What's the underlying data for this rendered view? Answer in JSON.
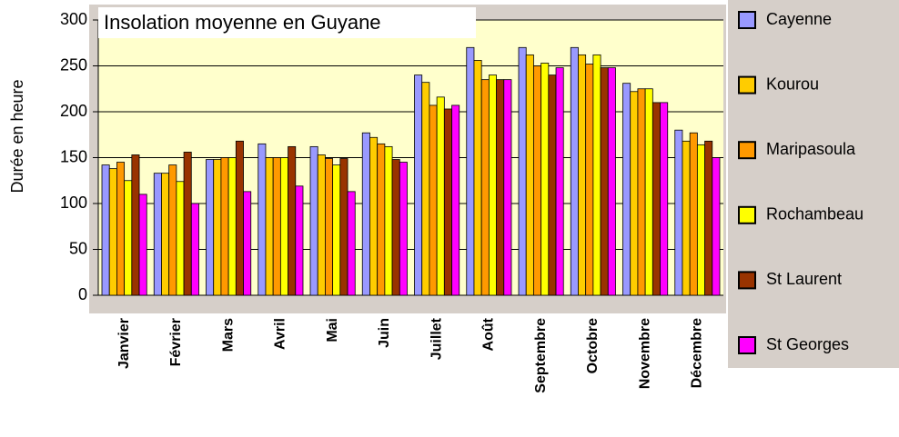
{
  "chart_data": {
    "type": "bar",
    "title": "Insolation moyenne en Guyane",
    "y_label": "Durée en heure",
    "categories": [
      "Janvier",
      "Février",
      "Mars",
      "Avril",
      "Mai",
      "Juin",
      "Juillet",
      "Août",
      "Septembre",
      "Octobre",
      "Novembre",
      "Décembre"
    ],
    "series": [
      {
        "name": "Cayenne",
        "color": "#9999ff",
        "values": [
          142,
          133,
          148,
          165,
          162,
          177,
          240,
          270,
          270,
          270,
          231,
          180
        ]
      },
      {
        "name": "Kourou",
        "color": "#ffcc00",
        "values": [
          138,
          133,
          148,
          150,
          153,
          172,
          232,
          256,
          262,
          262,
          222,
          168
        ]
      },
      {
        "name": "Maripasoula",
        "color": "#ff9900",
        "values": [
          145,
          142,
          150,
          150,
          149,
          165,
          207,
          235,
          250,
          252,
          225,
          177
        ]
      },
      {
        "name": "Rochambeau",
        "color": "#ffff00",
        "values": [
          125,
          124,
          150,
          150,
          142,
          162,
          216,
          240,
          253,
          262,
          225,
          164
        ]
      },
      {
        "name": "St Laurent",
        "color": "#993300",
        "values": [
          153,
          156,
          168,
          162,
          149,
          148,
          203,
          235,
          240,
          248,
          210,
          168
        ]
      },
      {
        "name": "St Georges",
        "color": "#ff00ff",
        "values": [
          110,
          100,
          113,
          119,
          113,
          145,
          207,
          235,
          248,
          248,
          210,
          150
        ]
      }
    ],
    "ylim": [
      0,
      300
    ],
    "yticks": [
      0,
      50,
      100,
      150,
      200,
      250,
      300
    ],
    "grid": true,
    "legend": "right"
  }
}
